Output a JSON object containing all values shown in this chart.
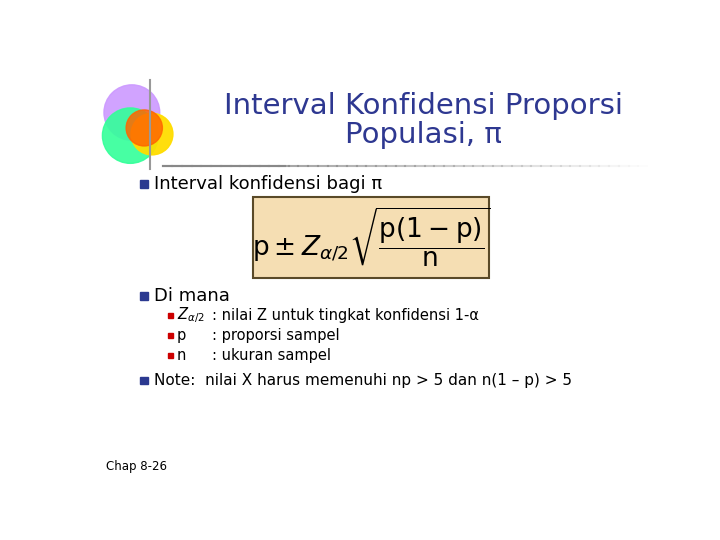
{
  "title_line1": "Interval Konfidensi Proporsi",
  "title_line2": "Populasi, π",
  "title_color": "#2E3891",
  "bg_color": "#FFFFFF",
  "header_line_color": "#888888",
  "bullet_color": "#2B3990",
  "bullet_color_small": "#CC0000",
  "bullet1_text": "Interval konfidensi bagi π",
  "bullet2_text": "Di mana",
  "formula_bg": "#F5DEB3",
  "formula_border": "#5A4A28",
  "sub_bullets": [
    [
      ": nilai Z untuk tingkat konfidensi 1-α"
    ],
    [
      ": proporsi sampel"
    ],
    [
      ": ukuran sampel"
    ]
  ],
  "note_text": "Note:  nilai X harus memenuhi np > 5 dan n(1 – p) > 5",
  "footer_text": "Chap 8-26",
  "circle1_color": "#CC99FF",
  "circle2_color": "#33FF99",
  "circle3_color": "#FFDD00",
  "circle4_color": "#FF6600"
}
